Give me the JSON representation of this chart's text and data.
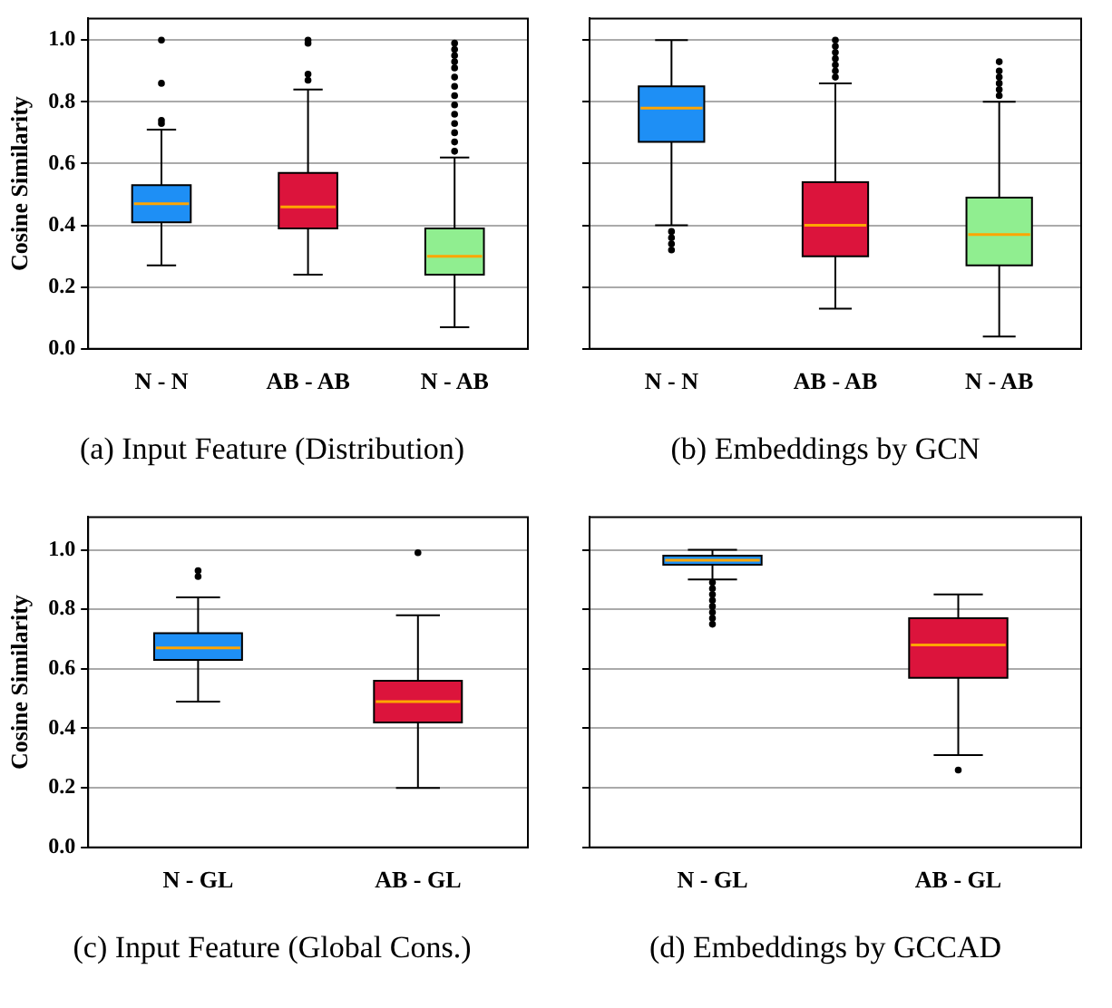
{
  "chart_data": [
    {
      "type": "box",
      "title": "(a)  Input Feature (Distribution)",
      "ylabel": "Cosine Similarity",
      "categories": [
        "N - N",
        "AB - AB",
        "N - AB"
      ],
      "colors": [
        "#1e8ff5",
        "#dc143c",
        "#90ee90"
      ],
      "ylim": [
        0,
        1.07
      ],
      "yticks": [
        {
          "value": 0,
          "label": "0.0"
        },
        {
          "value": 0.2,
          "label": "0.2"
        },
        {
          "value": 0.4,
          "label": "0.4"
        },
        {
          "value": 0.6,
          "label": "0.6"
        },
        {
          "value": 0.8,
          "label": "0.8"
        },
        {
          "value": 1,
          "label": "1.0"
        }
      ],
      "grid": "y",
      "boxes": [
        {
          "low": 0.27,
          "q1": 0.41,
          "median": 0.47,
          "q3": 0.53,
          "high": 0.71,
          "outliers": [
            0.73,
            0.74,
            0.86,
            1.0
          ]
        },
        {
          "low": 0.24,
          "q1": 0.39,
          "median": 0.46,
          "q3": 0.57,
          "high": 0.84,
          "outliers": [
            0.87,
            0.89,
            0.99,
            1.0
          ]
        },
        {
          "low": 0.07,
          "q1": 0.24,
          "median": 0.3,
          "q3": 0.39,
          "high": 0.62,
          "outliers": [
            0.64,
            0.67,
            0.7,
            0.73,
            0.76,
            0.79,
            0.82,
            0.85,
            0.88,
            0.91,
            0.93,
            0.95,
            0.97,
            0.99
          ]
        }
      ]
    },
    {
      "type": "box",
      "title": "(b)  Embeddings by GCN",
      "categories": [
        "N - N",
        "AB - AB",
        "N - AB"
      ],
      "colors": [
        "#1e8ff5",
        "#dc143c",
        "#90ee90"
      ],
      "ylim": [
        0,
        1.07
      ],
      "yticks": [
        {
          "value": 0,
          "label": null
        },
        {
          "value": 0.2,
          "label": null
        },
        {
          "value": 0.4,
          "label": null
        },
        {
          "value": 0.6,
          "label": null
        },
        {
          "value": 0.8,
          "label": null
        },
        {
          "value": 1,
          "label": null
        }
      ],
      "grid": "y",
      "tick_labels": "x",
      "boxes": [
        {
          "low": 0.4,
          "q1": 0.67,
          "median": 0.78,
          "q3": 0.85,
          "high": 1.0,
          "outliers": [
            0.32,
            0.34,
            0.36,
            0.38
          ]
        },
        {
          "low": 0.13,
          "q1": 0.3,
          "median": 0.4,
          "q3": 0.54,
          "high": 0.86,
          "outliers": [
            0.88,
            0.9,
            0.92,
            0.94,
            0.96,
            0.98,
            1.0
          ]
        },
        {
          "low": 0.04,
          "q1": 0.27,
          "median": 0.37,
          "q3": 0.49,
          "high": 0.8,
          "outliers": [
            0.82,
            0.84,
            0.86,
            0.88,
            0.9,
            0.93
          ]
        }
      ]
    },
    {
      "type": "box",
      "title": "(c)  Input Feature (Global Cons.)",
      "ylabel": "Cosine Similarity",
      "categories": [
        "N - GL",
        "AB - GL"
      ],
      "colors": [
        "#1e8ff5",
        "#dc143c"
      ],
      "ylim": [
        0,
        1.11
      ],
      "yticks": [
        {
          "value": 0,
          "label": "0.0"
        },
        {
          "value": 0.2,
          "label": "0.2"
        },
        {
          "value": 0.4,
          "label": "0.4"
        },
        {
          "value": 0.6,
          "label": "0.6"
        },
        {
          "value": 0.8,
          "label": "0.8"
        },
        {
          "value": 1,
          "label": "1.0"
        }
      ],
      "grid": "y",
      "boxes": [
        {
          "low": 0.49,
          "q1": 0.63,
          "median": 0.67,
          "q3": 0.72,
          "high": 0.84,
          "outliers": [
            0.91,
            0.93
          ]
        },
        {
          "low": 0.2,
          "q1": 0.42,
          "median": 0.49,
          "q3": 0.56,
          "high": 0.78,
          "outliers": [
            0.99
          ]
        }
      ]
    },
    {
      "type": "box",
      "title": "(d)  Embeddings by GCCAD",
      "categories": [
        "N - GL",
        "AB - GL"
      ],
      "colors": [
        "#1e8ff5",
        "#dc143c"
      ],
      "ylim": [
        0,
        1.11
      ],
      "yticks": [
        {
          "value": 0,
          "label": null
        },
        {
          "value": 0.2,
          "label": null
        },
        {
          "value": 0.4,
          "label": null
        },
        {
          "value": 0.6,
          "label": null
        },
        {
          "value": 0.8,
          "label": null
        },
        {
          "value": 1,
          "label": null
        }
      ],
      "grid": "y",
      "tick_labels": "x",
      "boxes": [
        {
          "low": 0.9,
          "q1": 0.95,
          "median": 0.965,
          "q3": 0.98,
          "high": 1.0,
          "outliers": [
            0.75,
            0.77,
            0.79,
            0.81,
            0.83,
            0.85,
            0.87,
            0.89
          ]
        },
        {
          "low": 0.31,
          "q1": 0.57,
          "median": 0.68,
          "q3": 0.77,
          "high": 0.85,
          "outliers": [
            0.26
          ]
        }
      ]
    }
  ]
}
